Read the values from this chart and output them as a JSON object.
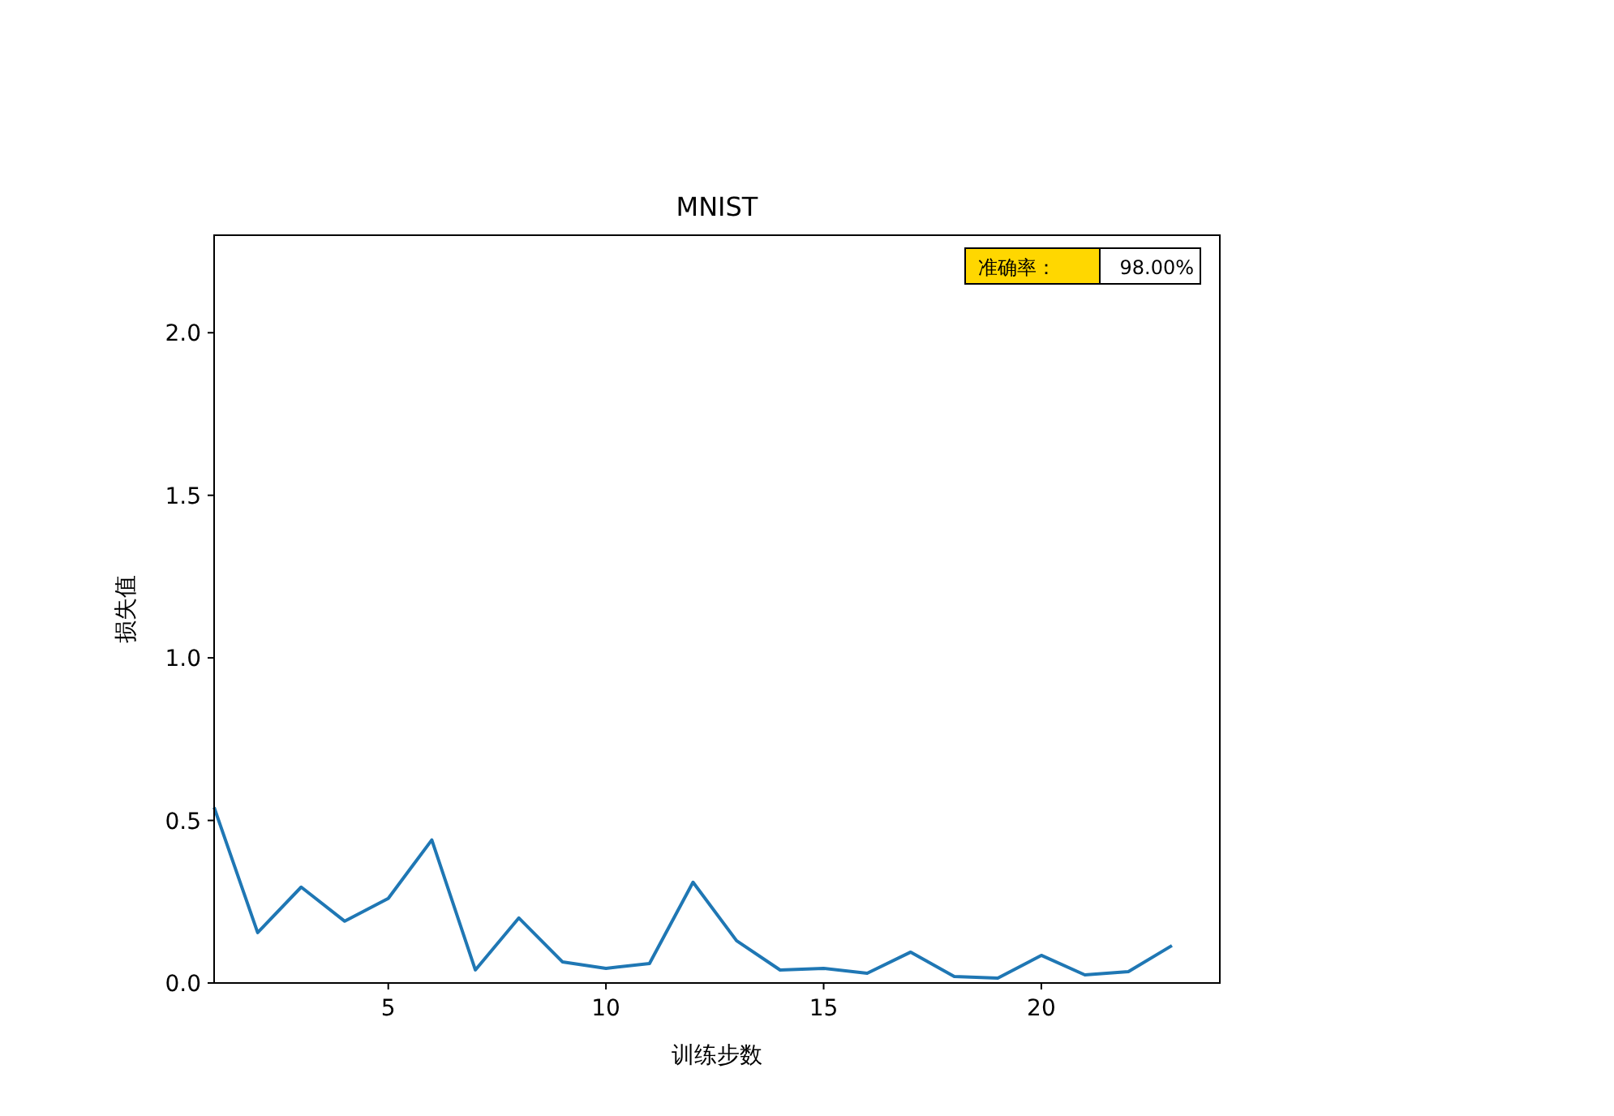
{
  "chart_data": {
    "type": "line",
    "title": "MNIST",
    "xlabel": "训练步数",
    "ylabel": "损失值",
    "x": [
      1,
      2,
      3,
      4,
      5,
      6,
      7,
      8,
      9,
      10,
      11,
      12,
      13,
      14,
      15,
      16,
      17,
      18,
      19,
      20,
      21,
      22,
      23
    ],
    "series": [
      {
        "color": "#1f77b4",
        "values": [
          0.54,
          0.155,
          0.295,
          0.19,
          0.26,
          0.44,
          0.04,
          0.2,
          0.065,
          0.045,
          0.06,
          0.31,
          0.13,
          0.04,
          0.045,
          0.03,
          0.095,
          0.02,
          0.015,
          0.085,
          0.025,
          0.035,
          0.115
        ]
      }
    ],
    "xlim": [
      1,
      24.1
    ],
    "xticks": [
      5,
      10,
      15,
      20
    ],
    "ylim": [
      0,
      2.3
    ],
    "yticks": [
      {
        "value": 0,
        "label": "0.0"
      },
      {
        "value": 0.5,
        "label": "0.5"
      },
      {
        "value": 1,
        "label": "1.0"
      },
      {
        "value": 1.5,
        "label": "1.5"
      },
      {
        "value": 2,
        "label": "2.0"
      }
    ],
    "annotations": [
      "准确率：",
      "98.00%"
    ],
    "grid": false,
    "marker": "none",
    "line_style": "solid"
  }
}
